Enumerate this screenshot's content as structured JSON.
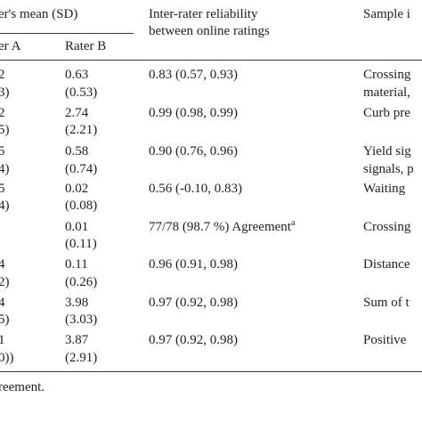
{
  "header": {
    "group_label": "er's mean (SD)",
    "rater_a": "er A",
    "rater_b": "Rater B",
    "reliability_line1": "Inter-rater reliability",
    "reliability_line2": "between online ratings",
    "sample_label": "Sample i"
  },
  "rows": [
    {
      "a_mean": "2",
      "a_sd": "3)",
      "b_mean": "0.63",
      "b_sd": "(0.53)",
      "reliability": "0.83 (0.57, 0.93)",
      "sample_line1": "Crossing",
      "sample_line2": "material,"
    },
    {
      "a_mean": "2",
      "a_sd": "5)",
      "b_mean": "2.74",
      "b_sd": "(2.21)",
      "reliability": "0.99 (0.98, 0.99)",
      "sample_line1": "Curb pre",
      "sample_line2": ""
    },
    {
      "a_mean": "5",
      "a_sd": "4)",
      "b_mean": "0.58",
      "b_sd": "(0.74)",
      "reliability": "0.90 (0.76, 0.96)",
      "sample_line1": "Yield sig",
      "sample_line2": "signals, p"
    },
    {
      "a_mean": "5",
      "a_sd": "4)",
      "b_mean": "0.02",
      "b_sd": "(0.08)",
      "reliability": "0.56 (-0.10, 0.83)",
      "sample_line1": "Waiting",
      "sample_line2": ""
    },
    {
      "a_mean": "",
      "a_sd": "",
      "b_mean": "0.01",
      "b_sd": "(0.11)",
      "reliability": "77/78 (98.7 %) Agreement",
      "reliability_sup": "a",
      "sample_line1": "Crossing",
      "sample_line2": ""
    },
    {
      "a_mean": "4",
      "a_sd": "2)",
      "b_mean": "0.11",
      "b_sd": "(0.26)",
      "reliability": "0.96 (0.91, 0.98)",
      "sample_line1": "Distance",
      "sample_line2": ""
    },
    {
      "a_mean": "4",
      "a_sd": "5)",
      "b_mean": "3.98",
      "b_sd": "(3.03)",
      "reliability": "0.97 (0.92, 0.98)",
      "sample_line1": "Sum of t",
      "sample_line2": ""
    },
    {
      "a_mean": "1",
      "a_sd": "0))",
      "b_mean": "3.87",
      "b_sd": "(2.91)",
      "reliability": "0.97 (0.92, 0.98)",
      "sample_line1": "Positive",
      "sample_line2": ""
    }
  ],
  "footnote": "reement."
}
